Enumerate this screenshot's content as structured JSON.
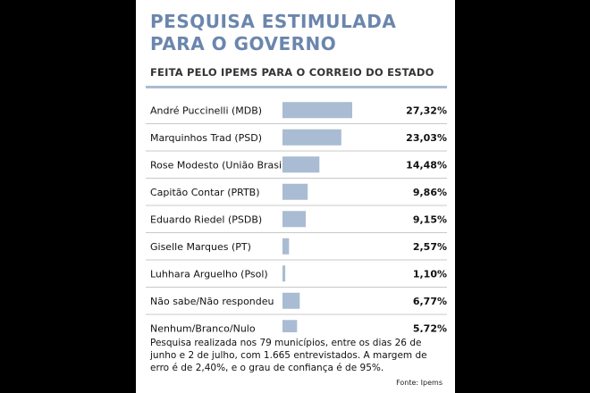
{
  "title": "PESQUISA ESTIMULADA PARA O GOVERNO",
  "subtitle": "FEITA PELO IPEMS PARA O CORREIO DO ESTADO",
  "footnote": "Pesquisa realizada nos 79 municípios, entre os dias 26 de junho e 2 de julho, com 1.665 entrevistados. A margem de erro é de 2,40%, e o grau de confiança é de 95%.",
  "source": "Fonte: Ipems",
  "colors": {
    "bar": "#a9bcd3",
    "title": "#6b86ad",
    "rule": "#a9bcd3"
  },
  "chart_data": {
    "type": "bar",
    "orientation": "horizontal",
    "categories": [
      "André Puccinelli (MDB)",
      "Marquinhos Trad (PSD)",
      "Rose Modesto (União Brasil)",
      "Capitão Contar (PRTB)",
      "Eduardo Riedel (PSDB)",
      "Giselle Marques (PT)",
      "Luhhara Arguelho (Psol)",
      "Não sabe/Não respondeu",
      "Nenhum/Branco/Nulo"
    ],
    "values": [
      27.32,
      23.03,
      14.48,
      9.86,
      9.15,
      2.57,
      1.1,
      6.77,
      5.72
    ],
    "value_labels": [
      "27,32%",
      "23,03%",
      "14,48%",
      "9,86%",
      "9,15%",
      "2,57%",
      "1,10%",
      "6,77%",
      "5,72%"
    ],
    "xlim": [
      0,
      27.32
    ],
    "grid": false
  }
}
